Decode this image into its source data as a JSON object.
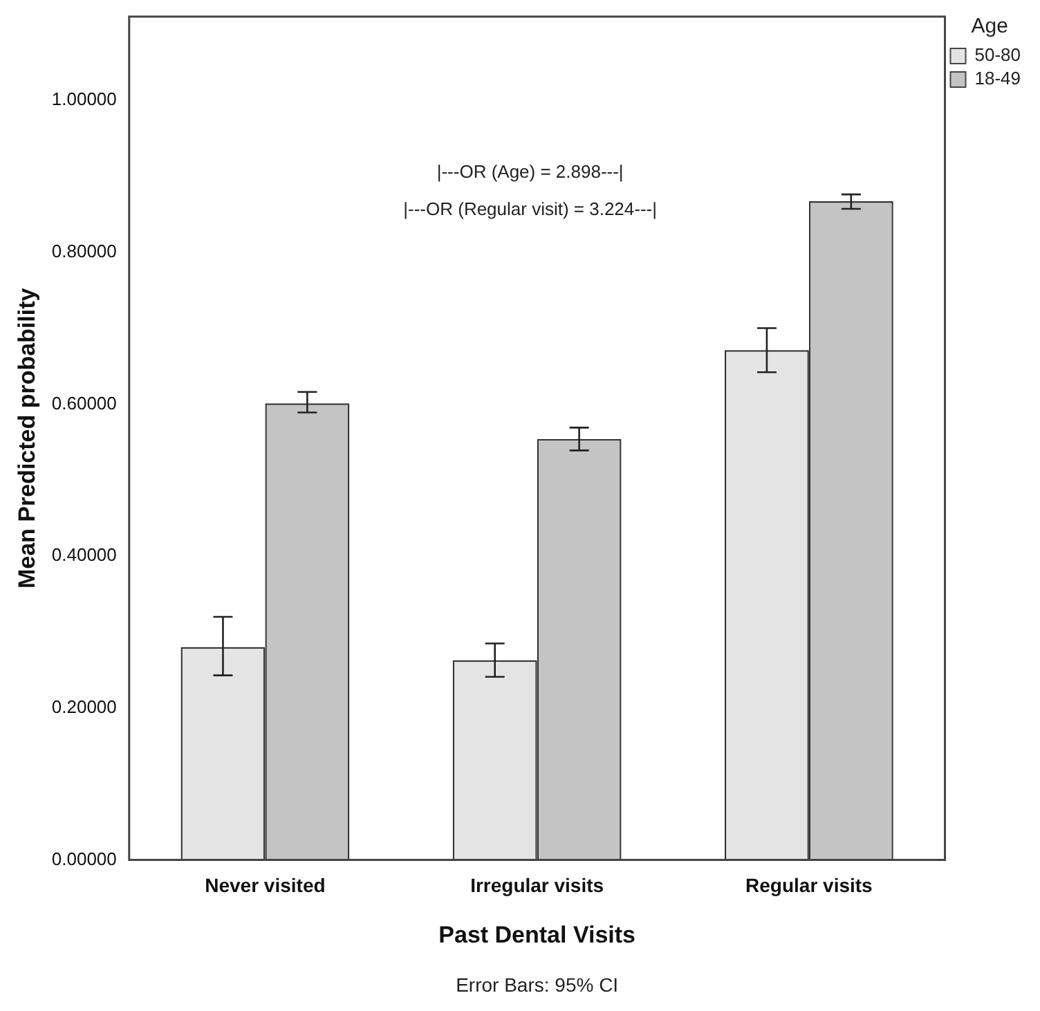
{
  "chart_data": {
    "type": "bar",
    "xlabel": "Past Dental Visits",
    "ylabel": "Mean Predicted probability",
    "legend_title": "Age",
    "categories": [
      "Never visited",
      "Irregular visits",
      "Regular visits"
    ],
    "series": [
      {
        "name": "50-80",
        "color": "#e4e4e4",
        "values": [
          0.28,
          0.263,
          0.671
        ],
        "errors": [
          [
            0.243,
            0.32
          ],
          [
            0.241,
            0.285
          ],
          [
            0.642,
            0.7
          ]
        ]
      },
      {
        "name": "18-49",
        "color": "#c4c4c4",
        "values": [
          0.601,
          0.554,
          0.867
        ],
        "errors": [
          [
            0.589,
            0.616
          ],
          [
            0.539,
            0.569
          ],
          [
            0.857,
            0.876
          ]
        ]
      }
    ],
    "ylim": [
      0,
      1.11
    ],
    "yticks": [
      {
        "value": 0,
        "label": "0.00000"
      },
      {
        "value": 0.2,
        "label": "0.20000"
      },
      {
        "value": 0.4,
        "label": "0.40000"
      },
      {
        "value": 0.6,
        "label": "0.60000"
      },
      {
        "value": 0.8,
        "label": "0.80000"
      },
      {
        "value": 1,
        "label": "1.00000"
      }
    ],
    "grid": false,
    "legend": "top right",
    "annotations": [
      "|---OR (Age) = 2.898---|",
      "|---OR (Regular visit) = 3.224---|",
      "Error Bars: 95% CI"
    ]
  }
}
